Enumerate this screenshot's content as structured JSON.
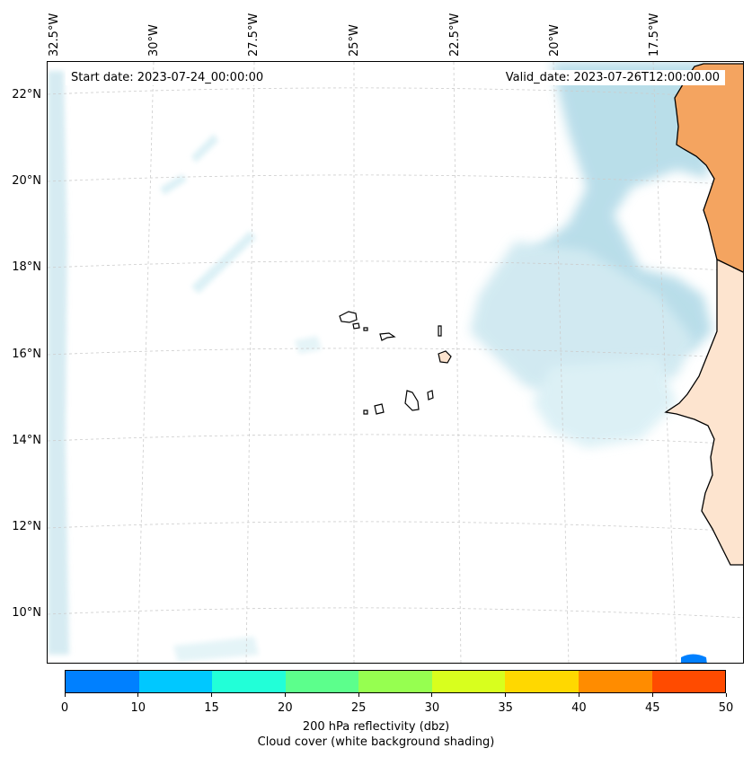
{
  "map": {
    "start_date": "Start date: 2023-07-24_00:00:00",
    "valid_date": "Valid_date: 2023-07-26T12:00:00.00",
    "lon_labels": [
      "32.5°W",
      "30°W",
      "27.5°W",
      "25°W",
      "22.5°W",
      "20°W",
      "17.5°W"
    ],
    "lat_labels": [
      "22°N",
      "20°N",
      "18°N",
      "16°N",
      "14°N",
      "12°N",
      "10°N"
    ],
    "colors": {
      "land_warm": "#f4a460",
      "land_pale": "#fde4cf",
      "cloud": "#add8e6",
      "grid": "#cccccc"
    }
  },
  "colorbar": {
    "label_line1": "200 hPa reflectivity (dbz)",
    "label_line2": "Cloud cover (white background shading)",
    "ticks": [
      "0",
      "10",
      "15",
      "20",
      "25",
      "30",
      "35",
      "40",
      "45",
      "50"
    ],
    "colors": [
      "#0080ff",
      "#00c8ff",
      "#22ffd8",
      "#5cff8c",
      "#96ff50",
      "#d8ff1e",
      "#ffd800",
      "#ff8c00",
      "#ff4b00"
    ]
  }
}
